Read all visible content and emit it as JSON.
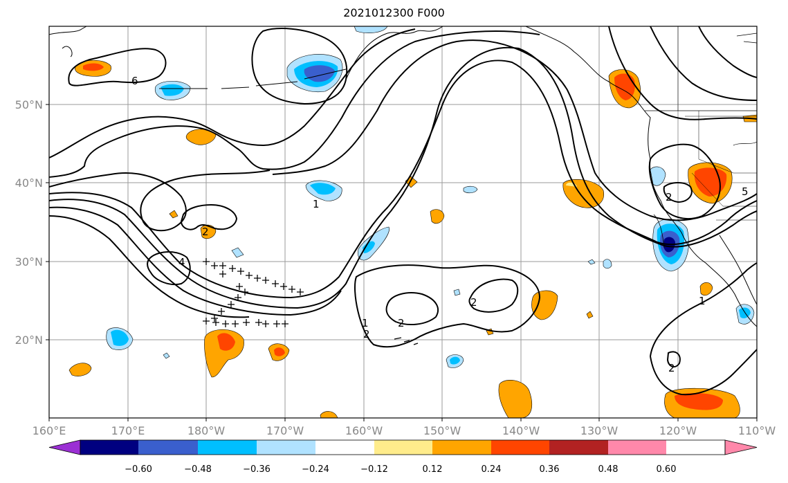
{
  "title": "2021012300 F000",
  "lon_labels": [
    "160°E",
    "170°E",
    "180°W",
    "170°W",
    "160°W",
    "150°W",
    "140°W",
    "130°W",
    "120°W",
    "110°W"
  ],
  "lat_labels": [
    "50°N",
    "40°N",
    "30°N",
    "20°N"
  ],
  "colorbar": {
    "ticks": [
      "−0.60",
      "−0.48",
      "−0.36",
      "−0.24",
      "−0.12",
      "0.12",
      "0.24",
      "0.36",
      "0.48",
      "0.60"
    ],
    "colors": [
      "#9b30d4",
      "#000080",
      "#3a5fcd",
      "#00bfff",
      "#b0e2ff",
      "#ffffff",
      "#ffec8b",
      "#ffa500",
      "#ff4500",
      "#b22222",
      "#ff88aa"
    ]
  },
  "contour_labels": [
    "6",
    "1",
    "2",
    "4",
    "2",
    "2",
    "1",
    "2",
    "2",
    "1",
    "2",
    "5"
  ],
  "markers": {
    "symbol": "+"
  }
}
